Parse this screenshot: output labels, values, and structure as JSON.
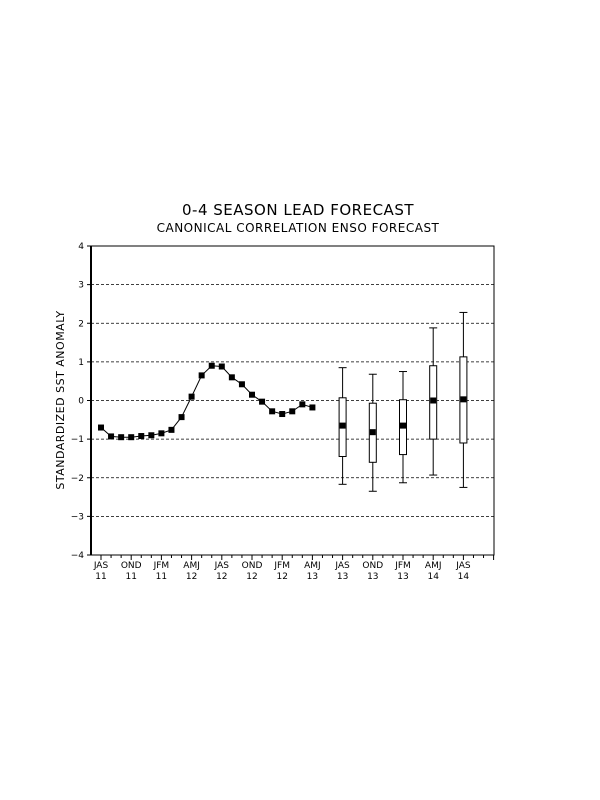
{
  "chart_data": {
    "type": "line",
    "title": "0-4 SEASON LEAD FORECAST",
    "subtitle": "CANONICAL CORRELATION ENSO FORECAST",
    "xlabel": "",
    "ylabel": "STANDARDIZED SST ANOMALY",
    "ylim": [
      -4,
      4
    ],
    "yticks": [
      -4,
      -3,
      -2,
      -1,
      0,
      1,
      2,
      3,
      4
    ],
    "grid": "horizontal dashed",
    "x_tick_labels": [
      {
        "season": "JAS",
        "year": "11"
      },
      {
        "season": "OND",
        "year": "11"
      },
      {
        "season": "JFM",
        "year": "11"
      },
      {
        "season": "AMJ",
        "year": "12"
      },
      {
        "season": "JAS",
        "year": "12"
      },
      {
        "season": "OND",
        "year": "12"
      },
      {
        "season": "JFM",
        "year": "12"
      },
      {
        "season": "AMJ",
        "year": "13"
      },
      {
        "season": "JAS",
        "year": "13"
      },
      {
        "season": "OND",
        "year": "13"
      },
      {
        "season": "JFM",
        "year": "13"
      },
      {
        "season": "AMJ",
        "year": "14"
      },
      {
        "season": "JAS",
        "year": "14"
      }
    ],
    "observed": {
      "x": [
        0,
        0.333,
        0.667,
        1,
        1.333,
        1.667,
        2,
        2.333,
        2.667,
        3,
        3.333,
        3.667,
        4,
        4.333,
        4.667,
        5,
        5.333,
        5.667,
        6,
        6.333,
        6.667,
        7
      ],
      "values": [
        -0.7,
        -0.93,
        -0.95,
        -0.95,
        -0.92,
        -0.9,
        -0.85,
        -0.76,
        -0.43,
        0.1,
        0.65,
        0.9,
        0.88,
        0.6,
        0.42,
        0.15,
        -0.03,
        -0.28,
        -0.35,
        -0.28,
        -0.1,
        -0.18
      ]
    },
    "forecast": [
      {
        "x": 8,
        "median": -0.65,
        "box": [
          -1.45,
          0.07
        ],
        "whiskers": [
          -2.17,
          0.85
        ]
      },
      {
        "x": 9,
        "median": -0.82,
        "box": [
          -1.6,
          -0.07
        ],
        "whiskers": [
          -2.35,
          0.68
        ]
      },
      {
        "x": 10,
        "median": -0.65,
        "box": [
          -1.4,
          0.02
        ],
        "whiskers": [
          -2.13,
          0.75
        ]
      },
      {
        "x": 11,
        "median": 0.0,
        "box": [
          -1.0,
          0.9
        ],
        "whiskers": [
          -1.93,
          1.88
        ]
      },
      {
        "x": 12,
        "median": 0.03,
        "box": [
          -1.1,
          1.13
        ],
        "whiskers": [
          -2.25,
          2.28
        ]
      }
    ]
  }
}
